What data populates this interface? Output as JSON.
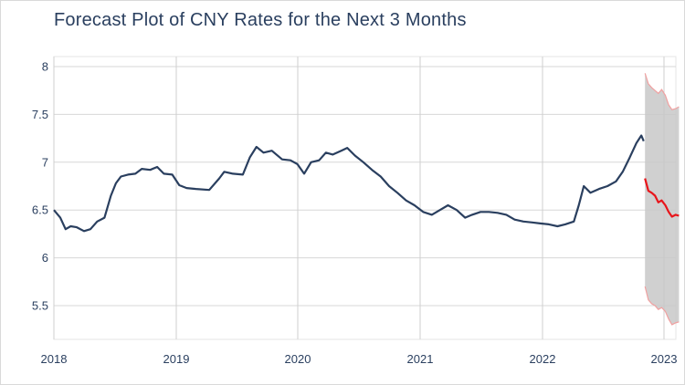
{
  "chart_data": {
    "type": "line",
    "title": "Forecast Plot of CNY Rates for the Next 3 Months",
    "xlabel": "",
    "ylabel": "",
    "x_ticks": [
      "2018",
      "2019",
      "2020",
      "2021",
      "2022",
      "2023"
    ],
    "y_ticks": [
      "5.5",
      "6",
      "6.5",
      "7",
      "7.5",
      "8"
    ],
    "xlim": [
      "2018-01-01",
      "2023-02-15"
    ],
    "ylim": [
      5.15,
      8.05
    ],
    "grid": true,
    "legend": "none",
    "series": [
      {
        "color": "#2a3f5f",
        "x": [
          "2018-01-01",
          "2018-01-20",
          "2018-02-05",
          "2018-02-20",
          "2018-03-10",
          "2018-04-01",
          "2018-04-20",
          "2018-05-10",
          "2018-06-01",
          "2018-06-20",
          "2018-07-05",
          "2018-07-20",
          "2018-08-10",
          "2018-09-01",
          "2018-09-20",
          "2018-10-15",
          "2018-11-05",
          "2018-11-25",
          "2018-12-20",
          "2019-01-10",
          "2019-02-01",
          "2019-03-01",
          "2019-04-10",
          "2019-05-10",
          "2019-05-25",
          "2019-06-20",
          "2019-07-20",
          "2019-08-10",
          "2019-08-30",
          "2019-09-20",
          "2019-10-15",
          "2019-11-15",
          "2019-12-10",
          "2019-12-31",
          "2020-01-20",
          "2020-02-10",
          "2020-03-05",
          "2020-03-25",
          "2020-04-15",
          "2020-05-10",
          "2020-05-28",
          "2020-06-20",
          "2020-07-15",
          "2020-08-10",
          "2020-09-05",
          "2020-09-30",
          "2020-10-25",
          "2020-11-20",
          "2020-12-15",
          "2021-01-10",
          "2021-02-05",
          "2021-03-01",
          "2021-03-25",
          "2021-04-20",
          "2021-05-15",
          "2021-06-05",
          "2021-06-30",
          "2021-07-25",
          "2021-08-20",
          "2021-09-15",
          "2021-10-10",
          "2021-11-05",
          "2021-12-01",
          "2021-12-25",
          "2022-01-20",
          "2022-02-15",
          "2022-03-10",
          "2022-04-05",
          "2022-04-20",
          "2022-05-05",
          "2022-05-25",
          "2022-06-20",
          "2022-07-15",
          "2022-08-10",
          "2022-08-30",
          "2022-09-20",
          "2022-10-10",
          "2022-10-25",
          "2022-11-01"
        ],
        "values": [
          6.5,
          6.42,
          6.3,
          6.33,
          6.32,
          6.28,
          6.3,
          6.38,
          6.42,
          6.65,
          6.78,
          6.85,
          6.87,
          6.88,
          6.93,
          6.92,
          6.95,
          6.88,
          6.87,
          6.76,
          6.73,
          6.72,
          6.71,
          6.83,
          6.9,
          6.88,
          6.87,
          7.05,
          7.16,
          7.1,
          7.12,
          7.03,
          7.02,
          6.98,
          6.88,
          7.0,
          7.02,
          7.1,
          7.08,
          7.12,
          7.15,
          7.07,
          7.0,
          6.92,
          6.85,
          6.75,
          6.68,
          6.6,
          6.55,
          6.48,
          6.45,
          6.5,
          6.55,
          6.5,
          6.42,
          6.45,
          6.48,
          6.48,
          6.47,
          6.45,
          6.4,
          6.38,
          6.37,
          6.36,
          6.35,
          6.33,
          6.35,
          6.38,
          6.55,
          6.75,
          6.68,
          6.72,
          6.75,
          6.8,
          6.9,
          7.05,
          7.2,
          7.28,
          7.22
        ]
      }
    ],
    "forecast": {
      "line_color": "#e8151b",
      "band_color": "#c8c8c8",
      "x": [
        "2022-11-05",
        "2022-11-15",
        "2022-11-25",
        "2022-12-05",
        "2022-12-15",
        "2022-12-25",
        "2023-01-05",
        "2023-01-15",
        "2023-01-25",
        "2023-02-05",
        "2023-02-15"
      ],
      "yhat": [
        6.83,
        6.7,
        6.68,
        6.65,
        6.58,
        6.6,
        6.55,
        6.48,
        6.43,
        6.45,
        6.44
      ],
      "upper": [
        7.93,
        7.82,
        7.78,
        7.75,
        7.72,
        7.76,
        7.7,
        7.6,
        7.55,
        7.56,
        7.58
      ],
      "lower": [
        5.7,
        5.56,
        5.52,
        5.5,
        5.46,
        5.48,
        5.44,
        5.36,
        5.3,
        5.32,
        5.33
      ]
    }
  }
}
